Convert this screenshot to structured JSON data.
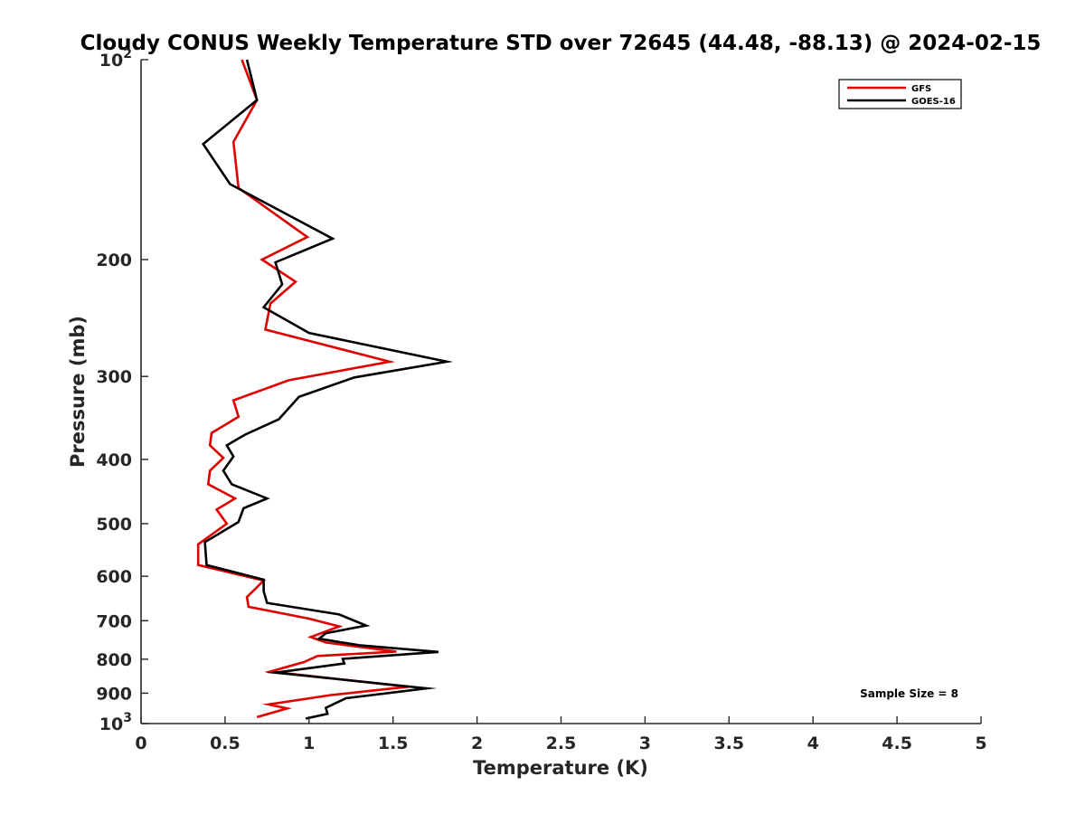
{
  "chart_data": {
    "type": "line",
    "title": "Cloudy CONUS Weekly Temperature STD over 72645 (44.48, -88.13) @ 2024-02-15",
    "xlabel": "Temperature (K)",
    "ylabel": "Pressure (mb)",
    "xlim": [
      0,
      5
    ],
    "ylim": [
      1000,
      100
    ],
    "y_scale": "log",
    "y_reversed": true,
    "grid": false,
    "legend_position": "top-right",
    "x_ticks": [
      "0",
      "0.5",
      "1",
      "1.5",
      "2",
      "2.5",
      "3",
      "3.5",
      "4",
      "4.5",
      "5"
    ],
    "y_ticks": [
      {
        "value": 100,
        "base": "10",
        "exp": "2"
      },
      {
        "value": 200,
        "label": "200"
      },
      {
        "value": 300,
        "label": "300"
      },
      {
        "value": 400,
        "label": "400"
      },
      {
        "value": 500,
        "label": "500"
      },
      {
        "value": 600,
        "label": "600"
      },
      {
        "value": 700,
        "label": "700"
      },
      {
        "value": 800,
        "label": "800"
      },
      {
        "value": 900,
        "label": "900"
      },
      {
        "value": 1000,
        "base": "10",
        "exp": "3"
      }
    ],
    "annotation": "Sample Size = 8",
    "series": [
      {
        "name": "GFS",
        "color": "#e00000",
        "points": [
          [
            0.6,
            100
          ],
          [
            0.69,
            115
          ],
          [
            0.55,
            133
          ],
          [
            0.58,
            156
          ],
          [
            0.99,
            185
          ],
          [
            0.72,
            200
          ],
          [
            0.92,
            216
          ],
          [
            0.77,
            233
          ],
          [
            0.74,
            255
          ],
          [
            1.48,
            285
          ],
          [
            0.88,
            304
          ],
          [
            0.55,
            326
          ],
          [
            0.58,
            345
          ],
          [
            0.42,
            365
          ],
          [
            0.41,
            381
          ],
          [
            0.49,
            398
          ],
          [
            0.41,
            416
          ],
          [
            0.4,
            436
          ],
          [
            0.56,
            458
          ],
          [
            0.45,
            476
          ],
          [
            0.51,
            500
          ],
          [
            0.34,
            537
          ],
          [
            0.34,
            577
          ],
          [
            0.73,
            609
          ],
          [
            0.63,
            645
          ],
          [
            0.64,
            667
          ],
          [
            1.0,
            695
          ],
          [
            1.18,
            714
          ],
          [
            1.01,
            741
          ],
          [
            1.1,
            755
          ],
          [
            1.52,
            779
          ],
          [
            1.05,
            791
          ],
          [
            0.97,
            808
          ],
          [
            0.77,
            835
          ],
          [
            1.59,
            880
          ],
          [
            1.13,
            906
          ],
          [
            0.76,
            936
          ],
          [
            0.87,
            949
          ],
          [
            0.69,
            978
          ]
        ]
      },
      {
        "name": "GOES-16",
        "color": "#000000",
        "points": [
          [
            0.63,
            100
          ],
          [
            0.69,
            115
          ],
          [
            0.37,
            134
          ],
          [
            0.53,
            154
          ],
          [
            1.14,
            186
          ],
          [
            0.8,
            202
          ],
          [
            0.84,
            218
          ],
          [
            0.73,
            236
          ],
          [
            1.0,
            258
          ],
          [
            1.82,
            285
          ],
          [
            1.27,
            301
          ],
          [
            0.94,
            322
          ],
          [
            0.82,
            348
          ],
          [
            0.62,
            367
          ],
          [
            0.51,
            381
          ],
          [
            0.55,
            396
          ],
          [
            0.49,
            416
          ],
          [
            0.54,
            436
          ],
          [
            0.75,
            458
          ],
          [
            0.61,
            474
          ],
          [
            0.58,
            497
          ],
          [
            0.38,
            533
          ],
          [
            0.39,
            577
          ],
          [
            0.73,
            607
          ],
          [
            0.73,
            632
          ],
          [
            0.75,
            658
          ],
          [
            1.18,
            685
          ],
          [
            1.34,
            712
          ],
          [
            1.1,
            731
          ],
          [
            1.06,
            745
          ],
          [
            1.3,
            762
          ],
          [
            1.77,
            780
          ],
          [
            1.2,
            799
          ],
          [
            1.21,
            812
          ],
          [
            0.8,
            838
          ],
          [
            1.7,
            885
          ],
          [
            1.22,
            916
          ],
          [
            1.1,
            947
          ],
          [
            1.11,
            967
          ],
          [
            0.98,
            983
          ]
        ]
      }
    ]
  }
}
